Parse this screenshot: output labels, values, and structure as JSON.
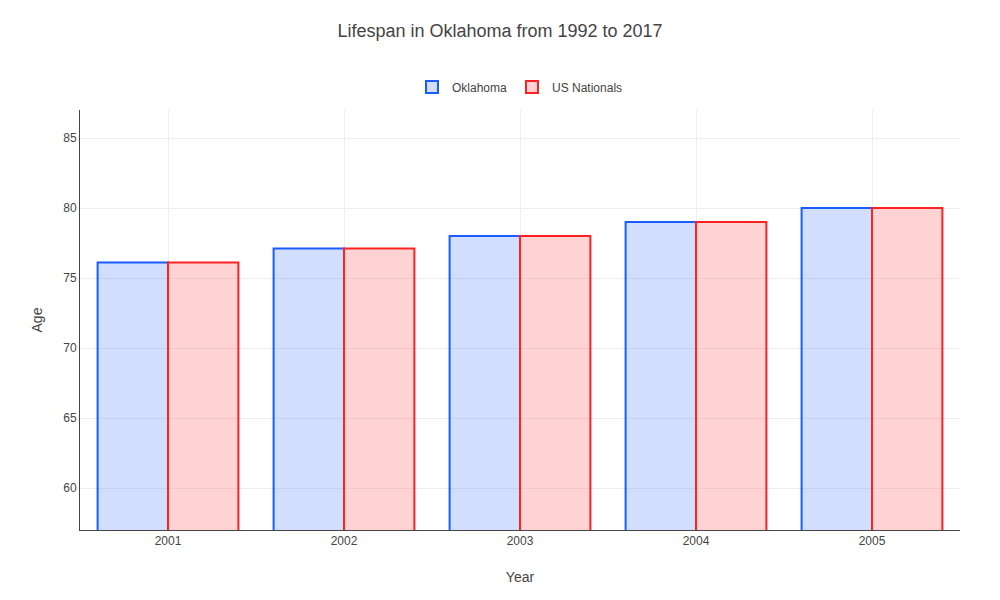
{
  "chart_data": {
    "type": "bar",
    "title": "Lifespan in Oklahoma from 1992 to 2017",
    "xlabel": "Year",
    "ylabel": "Age",
    "categories": [
      "2001",
      "2002",
      "2003",
      "2004",
      "2005"
    ],
    "series": [
      {
        "name": "Oklahoma",
        "color": "#1a5cff",
        "values": [
          76.1,
          77.1,
          78.0,
          79.0,
          80.0
        ]
      },
      {
        "name": "US Nationals",
        "color": "#ff2222",
        "values": [
          76.1,
          77.1,
          78.0,
          79.0,
          80.0
        ]
      }
    ],
    "ylim": [
      57,
      87
    ],
    "yticks": [
      60,
      65,
      70,
      75,
      80,
      85
    ],
    "grid": true,
    "legend": "top"
  }
}
